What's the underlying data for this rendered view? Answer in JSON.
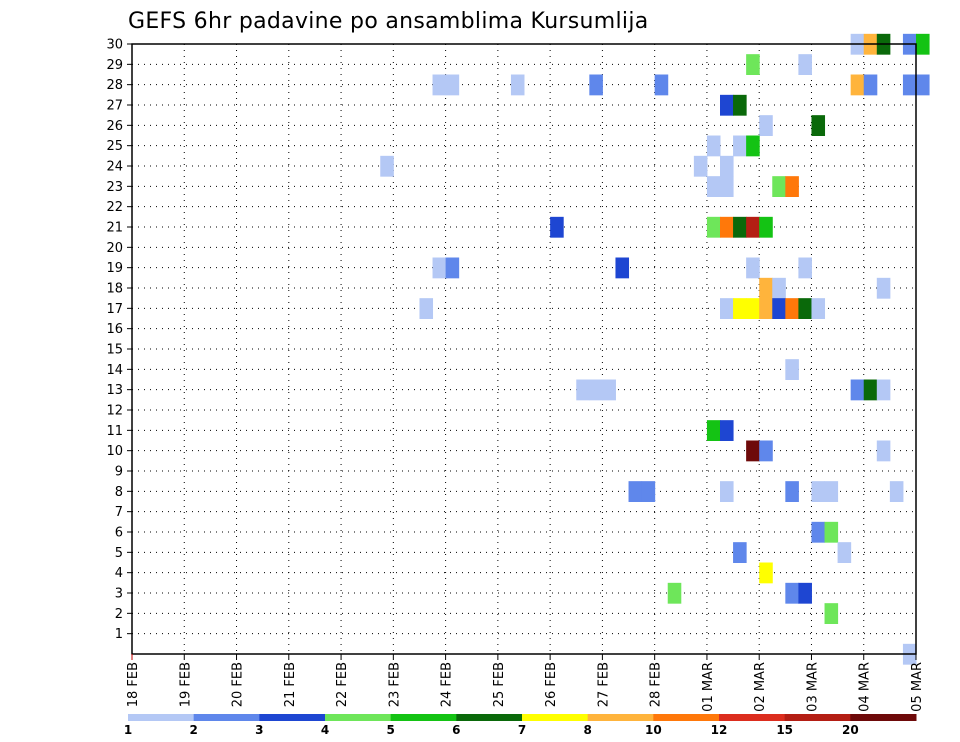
{
  "chart_data": {
    "type": "heatmap",
    "title": "GEFS 6hr padavine po ansamblima Kursumlija",
    "xlabel": "",
    "ylabel": "",
    "x_ticks": [
      "18 FEB",
      "19 FEB",
      "20 FEB",
      "21 FEB",
      "22 FEB",
      "23 FEB",
      "24 FEB",
      "25 FEB",
      "26 FEB",
      "27 FEB",
      "28 FEB",
      "01 MAR",
      "02 MAR",
      "03 MAR",
      "04 MAR",
      "05 MAR"
    ],
    "y_ticks": [
      "1",
      "2",
      "3",
      "4",
      "5",
      "6",
      "7",
      "8",
      "9",
      "10",
      "11",
      "12",
      "13",
      "14",
      "15",
      "16",
      "17",
      "18",
      "19",
      "20",
      "21",
      "22",
      "23",
      "24",
      "25",
      "26",
      "27",
      "28",
      "29",
      "30"
    ],
    "ylim": [
      0,
      30
    ],
    "steps_per_day": 4,
    "grid": true,
    "legend": {
      "position": "bottom",
      "labels": [
        "1",
        "2",
        "3",
        "4",
        "5",
        "6",
        "7",
        "8",
        "10",
        "12",
        "15",
        "20"
      ],
      "colors": [
        "#b4c8f5",
        "#5f87eb",
        "#1e46d2",
        "#6ee65a",
        "#14c314",
        "#0a690a",
        "#ffff00",
        "#ffb43c",
        "#ff780a",
        "#dc2d1e",
        "#b41e14",
        "#6e0a0a"
      ]
    },
    "cells": [
      {
        "member": 30,
        "day": 13.75,
        "level": 0
      },
      {
        "member": 30,
        "day": 14.0,
        "level": 7
      },
      {
        "member": 30,
        "day": 14.25,
        "level": 5
      },
      {
        "member": 30,
        "day": 14.75,
        "level": 1
      },
      {
        "member": 30,
        "day": 15.0,
        "level": 4
      },
      {
        "member": 29,
        "day": 11.75,
        "level": 3
      },
      {
        "member": 29,
        "day": 12.75,
        "level": 0
      },
      {
        "member": 28,
        "day": 5.75,
        "level": 0
      },
      {
        "member": 28,
        "day": 6.0,
        "level": 0
      },
      {
        "member": 28,
        "day": 7.25,
        "level": 0
      },
      {
        "member": 28,
        "day": 8.75,
        "level": 1
      },
      {
        "member": 28,
        "day": 10.0,
        "level": 1
      },
      {
        "member": 28,
        "day": 13.75,
        "level": 7
      },
      {
        "member": 28,
        "day": 14.0,
        "level": 1
      },
      {
        "member": 28,
        "day": 14.75,
        "level": 1
      },
      {
        "member": 28,
        "day": 15.0,
        "level": 1
      },
      {
        "member": 27,
        "day": 11.25,
        "level": 2
      },
      {
        "member": 27,
        "day": 11.5,
        "level": 5
      },
      {
        "member": 26,
        "day": 12.0,
        "level": 0
      },
      {
        "member": 26,
        "day": 13.0,
        "level": 5
      },
      {
        "member": 25,
        "day": 11.0,
        "level": 0
      },
      {
        "member": 25,
        "day": 11.5,
        "level": 0
      },
      {
        "member": 25,
        "day": 11.75,
        "level": 4
      },
      {
        "member": 24,
        "day": 4.75,
        "level": 0
      },
      {
        "member": 24,
        "day": 10.75,
        "level": 0
      },
      {
        "member": 24,
        "day": 11.25,
        "level": 0
      },
      {
        "member": 23,
        "day": 11.0,
        "level": 0
      },
      {
        "member": 23,
        "day": 11.25,
        "level": 0
      },
      {
        "member": 23,
        "day": 12.25,
        "level": 3
      },
      {
        "member": 23,
        "day": 12.5,
        "level": 8
      },
      {
        "member": 21,
        "day": 8.0,
        "level": 2
      },
      {
        "member": 21,
        "day": 11.0,
        "level": 3
      },
      {
        "member": 21,
        "day": 11.25,
        "level": 8
      },
      {
        "member": 21,
        "day": 11.5,
        "level": 5
      },
      {
        "member": 21,
        "day": 11.75,
        "level": 10
      },
      {
        "member": 21,
        "day": 12.0,
        "level": 4
      },
      {
        "member": 19,
        "day": 5.75,
        "level": 0
      },
      {
        "member": 19,
        "day": 6.0,
        "level": 1
      },
      {
        "member": 19,
        "day": 9.25,
        "level": 2
      },
      {
        "member": 19,
        "day": 11.75,
        "level": 0
      },
      {
        "member": 19,
        "day": 12.75,
        "level": 0
      },
      {
        "member": 18,
        "day": 12.0,
        "level": 7
      },
      {
        "member": 18,
        "day": 12.25,
        "level": 0
      },
      {
        "member": 18,
        "day": 14.25,
        "level": 0
      },
      {
        "member": 17,
        "day": 5.5,
        "level": 0
      },
      {
        "member": 17,
        "day": 11.25,
        "level": 0
      },
      {
        "member": 17,
        "day": 11.5,
        "level": 6
      },
      {
        "member": 17,
        "day": 11.75,
        "level": 6
      },
      {
        "member": 17,
        "day": 12.0,
        "level": 7
      },
      {
        "member": 17,
        "day": 12.25,
        "level": 2
      },
      {
        "member": 17,
        "day": 12.5,
        "level": 8
      },
      {
        "member": 17,
        "day": 12.75,
        "level": 5
      },
      {
        "member": 17,
        "day": 13.0,
        "level": 0
      },
      {
        "member": 14,
        "day": 12.5,
        "level": 0
      },
      {
        "member": 13,
        "day": 8.5,
        "level": 0
      },
      {
        "member": 13,
        "day": 8.75,
        "level": 0
      },
      {
        "member": 13,
        "day": 9.0,
        "level": 0
      },
      {
        "member": 13,
        "day": 13.75,
        "level": 1
      },
      {
        "member": 13,
        "day": 14.0,
        "level": 5
      },
      {
        "member": 13,
        "day": 14.25,
        "level": 0
      },
      {
        "member": 11,
        "day": 11.0,
        "level": 4
      },
      {
        "member": 11,
        "day": 11.25,
        "level": 2
      },
      {
        "member": 10,
        "day": 11.75,
        "level": 11
      },
      {
        "member": 10,
        "day": 12.0,
        "level": 1
      },
      {
        "member": 10,
        "day": 14.25,
        "level": 0
      },
      {
        "member": 8,
        "day": 9.5,
        "level": 1
      },
      {
        "member": 8,
        "day": 9.75,
        "level": 1
      },
      {
        "member": 8,
        "day": 11.25,
        "level": 0
      },
      {
        "member": 8,
        "day": 12.5,
        "level": 1
      },
      {
        "member": 8,
        "day": 13.0,
        "level": 0
      },
      {
        "member": 8,
        "day": 13.25,
        "level": 0
      },
      {
        "member": 8,
        "day": 14.5,
        "level": 0
      },
      {
        "member": 6,
        "day": 13.0,
        "level": 1
      },
      {
        "member": 6,
        "day": 13.25,
        "level": 3
      },
      {
        "member": 5,
        "day": 11.5,
        "level": 1
      },
      {
        "member": 5,
        "day": 13.5,
        "level": 0
      },
      {
        "member": 4,
        "day": 12.0,
        "level": 6
      },
      {
        "member": 3,
        "day": 10.25,
        "level": 3
      },
      {
        "member": 3,
        "day": 12.5,
        "level": 1
      },
      {
        "member": 3,
        "day": 12.75,
        "level": 2
      },
      {
        "member": 2,
        "day": 13.25,
        "level": 3
      },
      {
        "member": 0,
        "day": 14.75,
        "level": 0
      }
    ]
  }
}
